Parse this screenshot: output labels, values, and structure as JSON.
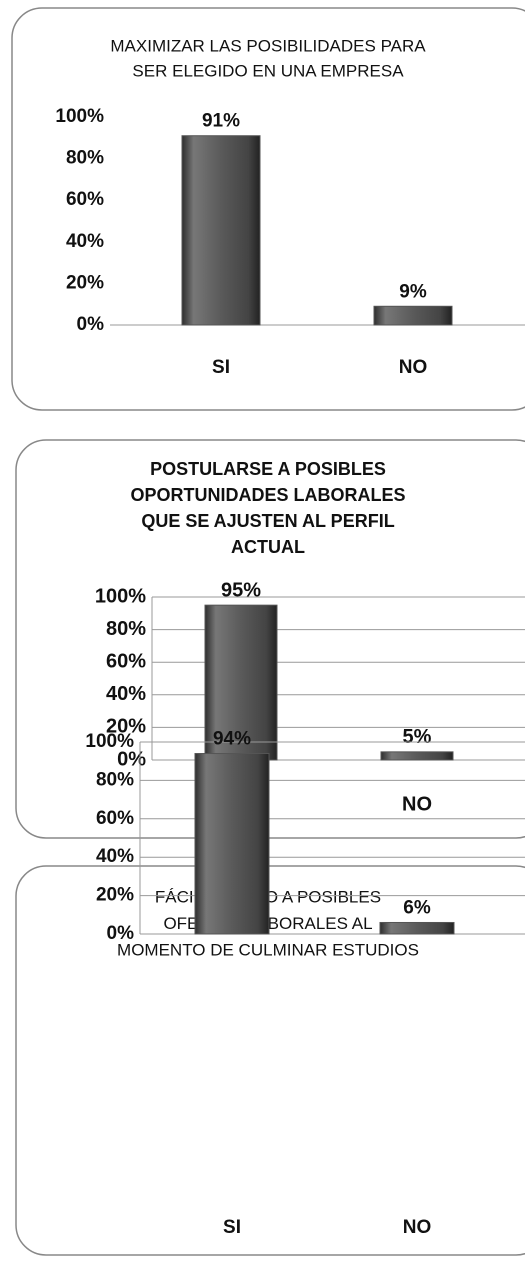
{
  "chart_data": [
    {
      "type": "bar",
      "title": [
        "MAXIMIZAR LAS POSIBILIDADES PARA",
        "SER ELEGIDO EN UNA EMPRESA"
      ],
      "categories": [
        "SI",
        "NO"
      ],
      "values": [
        91,
        9
      ],
      "value_labels": [
        "91%",
        "9%"
      ],
      "color": "#555555",
      "ylim": [
        0,
        100
      ],
      "yticks": [
        {
          "value": 0,
          "label": "0%"
        },
        {
          "value": 20,
          "label": "20%"
        },
        {
          "value": 40,
          "label": "40%"
        },
        {
          "value": 60,
          "label": "60%"
        },
        {
          "value": 80,
          "label": "80%"
        },
        {
          "value": 100,
          "label": "100%"
        }
      ],
      "grid": false
    },
    {
      "type": "bar",
      "title": [
        "POSTULARSE A POSIBLES",
        "OPORTUNIDADES LABORALES",
        "QUE SE AJUSTEN AL PERFIL",
        "ACTUAL"
      ],
      "categories": [
        "SI",
        "NO"
      ],
      "values": [
        95,
        5
      ],
      "value_labels": [
        "95%",
        "5%"
      ],
      "color": "#555555",
      "ylim": [
        0,
        100
      ],
      "yticks": [
        {
          "value": 0,
          "label": "0%"
        },
        {
          "value": 20,
          "label": "20%"
        },
        {
          "value": 40,
          "label": "40%"
        },
        {
          "value": 60,
          "label": "60%"
        },
        {
          "value": 80,
          "label": "80%"
        },
        {
          "value": 100,
          "label": "100%"
        }
      ],
      "grid": true
    },
    {
      "type": "bar",
      "title": [
        "FÁCIL ACCESO A POSIBLES",
        "OFERTAS LABORALES AL",
        "MOMENTO DE CULMINAR ESTUDIOS"
      ],
      "categories": [
        "SI",
        "NO"
      ],
      "values": [
        94,
        6
      ],
      "value_labels": [
        "94%",
        "6%"
      ],
      "color": "#555555",
      "ylim": [
        0,
        100
      ],
      "yticks": [
        {
          "value": 0,
          "label": "0%"
        },
        {
          "value": 20,
          "label": "20%"
        },
        {
          "value": 40,
          "label": "40%"
        },
        {
          "value": 60,
          "label": "60%"
        },
        {
          "value": 80,
          "label": "80%"
        },
        {
          "value": 100,
          "label": "100%"
        }
      ],
      "grid": true
    }
  ]
}
